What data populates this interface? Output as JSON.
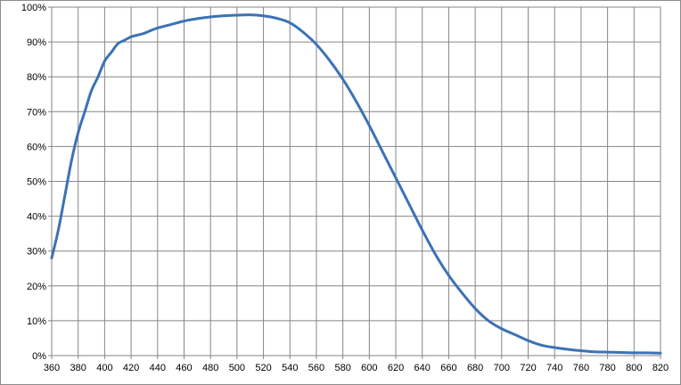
{
  "chart_data": {
    "type": "line",
    "title": "",
    "xlabel": "",
    "ylabel": "",
    "xlim": [
      360,
      820
    ],
    "ylim": [
      0,
      100
    ],
    "grid": true,
    "x_ticks": [
      "360",
      "380",
      "400",
      "420",
      "440",
      "460",
      "480",
      "500",
      "520",
      "540",
      "560",
      "580",
      "600",
      "620",
      "640",
      "660",
      "680",
      "700",
      "720",
      "740",
      "760",
      "780",
      "800",
      "820"
    ],
    "y_ticks": [
      "0%",
      "10%",
      "20%",
      "30%",
      "40%",
      "50%",
      "60%",
      "70%",
      "80%",
      "90%",
      "100%"
    ],
    "series": [
      {
        "color": "#3c72b5",
        "x": [
          360,
          365,
          370,
          375,
          380,
          385,
          390,
          395,
          400,
          405,
          410,
          415,
          420,
          425,
          430,
          435,
          440,
          450,
          460,
          470,
          480,
          490,
          500,
          510,
          520,
          530,
          540,
          550,
          560,
          570,
          580,
          590,
          600,
          610,
          620,
          630,
          640,
          650,
          660,
          670,
          680,
          690,
          700,
          710,
          720,
          730,
          740,
          750,
          760,
          770,
          780,
          790,
          800,
          810,
          820
        ],
        "y": [
          28,
          36,
          46,
          56,
          64,
          70,
          76,
          80,
          84.5,
          87,
          89.5,
          90.5,
          91.5,
          92,
          92.5,
          93.3,
          94,
          95,
          96,
          96.7,
          97.2,
          97.5,
          97.7,
          97.8,
          97.5,
          96.8,
          95.5,
          92.8,
          89.3,
          84.7,
          79.3,
          73,
          66,
          58.5,
          51,
          43.5,
          36,
          29,
          23,
          18,
          13.5,
          10,
          7.7,
          6,
          4.3,
          3,
          2.3,
          1.8,
          1.4,
          1.1,
          1,
          0.9,
          0.8,
          0.8,
          0.7
        ]
      }
    ]
  }
}
